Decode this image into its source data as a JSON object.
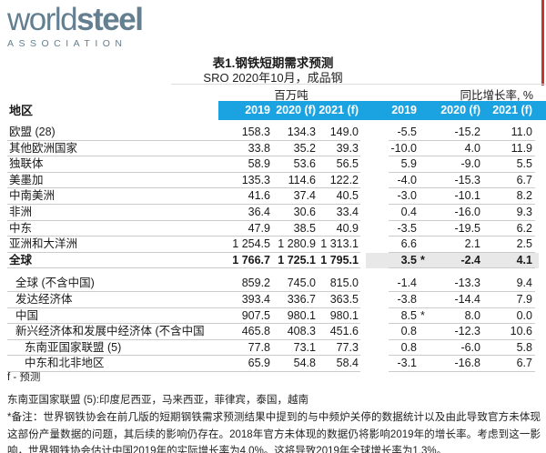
{
  "logo": {
    "word_light": "world",
    "word_bold": "steel",
    "sub": "ASSOCIATION"
  },
  "title": "表1.钢铁短期需求预测",
  "subtitle": "SRO 2020年10月，成品钢",
  "units": {
    "left": "百万吨",
    "right": "同比增长率, %"
  },
  "region_header": "地区",
  "columns": [
    "2019",
    "2020 (f)",
    "2021 (f)",
    "2019",
    "2020 (f)",
    "2021 (f)"
  ],
  "colors": {
    "band_blue": "#1aa3e0",
    "logo_slate": "#637f90",
    "accent_red": "#c23a2f",
    "row_line": "#cccccc",
    "global_row_shade": "#e8e8e8"
  },
  "table": {
    "rows": [
      {
        "label": "欧盟 (28)",
        "indent": 0,
        "bold": false,
        "shaded": false,
        "star": false,
        "gap": false,
        "mt": [
          "158.3",
          "134.3",
          "149.0"
        ],
        "pct": [
          "-5.5",
          "-15.2",
          "11.0"
        ]
      },
      {
        "label": "其他欧洲国家",
        "indent": 0,
        "bold": false,
        "shaded": false,
        "star": false,
        "gap": false,
        "mt": [
          "33.8",
          "35.2",
          "39.3"
        ],
        "pct": [
          "-10.0",
          "4.0",
          "11.9"
        ]
      },
      {
        "label": "独联体",
        "indent": 0,
        "bold": false,
        "shaded": false,
        "star": false,
        "gap": false,
        "mt": [
          "58.9",
          "53.6",
          "56.5"
        ],
        "pct": [
          "5.9",
          "-9.0",
          "5.5"
        ]
      },
      {
        "label": "美墨加",
        "indent": 0,
        "bold": false,
        "shaded": false,
        "star": false,
        "gap": false,
        "mt": [
          "135.3",
          "114.6",
          "122.2"
        ],
        "pct": [
          "-4.0",
          "-15.3",
          "6.7"
        ]
      },
      {
        "label": "中南美洲",
        "indent": 0,
        "bold": false,
        "shaded": false,
        "star": false,
        "gap": false,
        "mt": [
          "41.6",
          "37.4",
          "40.5"
        ],
        "pct": [
          "-3.0",
          "-10.1",
          "8.2"
        ]
      },
      {
        "label": "非洲",
        "indent": 0,
        "bold": false,
        "shaded": false,
        "star": false,
        "gap": false,
        "mt": [
          "36.4",
          "30.6",
          "33.4"
        ],
        "pct": [
          "0.4",
          "-16.0",
          "9.3"
        ]
      },
      {
        "label": "中东",
        "indent": 0,
        "bold": false,
        "shaded": false,
        "star": false,
        "gap": false,
        "mt": [
          "47.9",
          "38.5",
          "40.9"
        ],
        "pct": [
          "-3.5",
          "-19.5",
          "6.2"
        ]
      },
      {
        "label": "亚洲和大洋洲",
        "indent": 0,
        "bold": false,
        "shaded": false,
        "star": false,
        "gap": false,
        "mt": [
          "1 254.5",
          "1 280.9",
          "1 313.1"
        ],
        "pct": [
          "6.6",
          "2.1",
          "2.5"
        ]
      },
      {
        "label": "全球",
        "indent": 0,
        "bold": true,
        "shaded": true,
        "star": true,
        "gap": false,
        "mt": [
          "1 766.7",
          "1 725.1",
          "1 795.1"
        ],
        "pct": [
          "3.5",
          "-2.4",
          "4.1"
        ]
      },
      {
        "label": "全球 (不含中国)",
        "indent": 1,
        "bold": false,
        "shaded": false,
        "star": false,
        "gap": true,
        "mt": [
          "859.2",
          "745.0",
          "815.0"
        ],
        "pct": [
          "-1.4",
          "-13.3",
          "9.4"
        ]
      },
      {
        "label": "发达经济体",
        "indent": 1,
        "bold": false,
        "shaded": false,
        "star": false,
        "gap": false,
        "mt": [
          "393.4",
          "336.7",
          "363.5"
        ],
        "pct": [
          "-3.8",
          "-14.4",
          "7.9"
        ]
      },
      {
        "label": "中国",
        "indent": 1,
        "bold": false,
        "shaded": false,
        "star": true,
        "gap": false,
        "mt": [
          "907.5",
          "980.1",
          "980.1"
        ],
        "pct": [
          "8.5",
          "8.0",
          "0.0"
        ]
      },
      {
        "label": "新兴经济体和发展中经济体 (不含中国",
        "indent": 1,
        "bold": false,
        "shaded": false,
        "star": false,
        "gap": false,
        "mt": [
          "465.8",
          "408.3",
          "451.6"
        ],
        "pct": [
          "0.8",
          "-12.3",
          "10.6"
        ]
      },
      {
        "label": "东南亚国家联盟 (5)",
        "indent": 2,
        "bold": false,
        "shaded": false,
        "star": false,
        "gap": false,
        "mt": [
          "77.8",
          "73.1",
          "77.3"
        ],
        "pct": [
          "0.8",
          "-6.0",
          "5.8"
        ]
      },
      {
        "label": "中东和北非地区",
        "indent": 2,
        "bold": false,
        "shaded": false,
        "star": false,
        "gap": false,
        "mt": [
          "65.9",
          "54.8",
          "58.4"
        ],
        "pct": [
          "-3.1",
          "-16.8",
          "6.7"
        ]
      }
    ]
  },
  "footnotes": {
    "forecast": "f - 预测",
    "asean": "东南亚国家联盟 (5):印度尼西亚，马来西亚，菲律宾，泰国，越南",
    "note": "*备注：世界钢铁协会在前几版的短期钢铁需求预测结果中提到的与中频炉关停的数据统计以及由此导致官方未体现这部份产量数据的问题，其后续的影响仍存在。2018年官方未体现的数据仍将影响2019年的增长率。考虑到这一影响，世界钢铁协会估计中国2019年的实际增长率为4.0%。这将导致2019年全球增长率为1.3%。"
  }
}
